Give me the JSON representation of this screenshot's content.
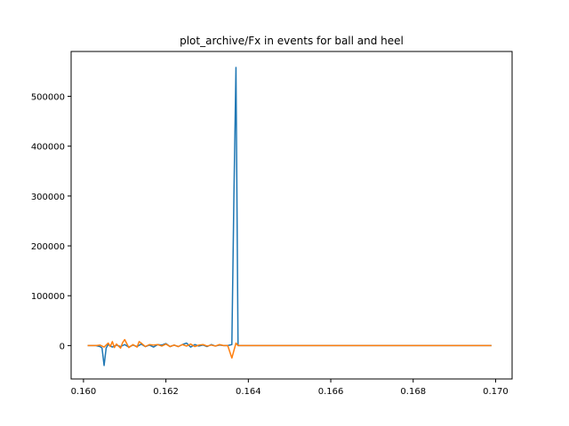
{
  "chart_data": {
    "type": "line",
    "title": "plot_archive/Fx in events for ball and heel",
    "xlabel": "",
    "ylabel": "",
    "xlim": [
      0.1597,
      0.1704
    ],
    "ylim": [
      -67000,
      590000
    ],
    "grid": false,
    "legend": "none",
    "x_ticks": [
      {
        "value": 0.16,
        "label": "0.160"
      },
      {
        "value": 0.162,
        "label": "0.162"
      },
      {
        "value": 0.164,
        "label": "0.164"
      },
      {
        "value": 0.166,
        "label": "0.166"
      },
      {
        "value": 0.168,
        "label": "0.168"
      },
      {
        "value": 0.17,
        "label": "0.170"
      }
    ],
    "y_ticks": [
      {
        "value": 0,
        "label": "0"
      },
      {
        "value": 100000,
        "label": "100000"
      },
      {
        "value": 200000,
        "label": "200000"
      },
      {
        "value": 300000,
        "label": "300000"
      },
      {
        "value": 400000,
        "label": "400000"
      },
      {
        "value": 500000,
        "label": "500000"
      }
    ],
    "series": [
      {
        "color": "#1f77b4",
        "x": [
          0.1601,
          0.1603,
          0.1604,
          0.16045,
          0.1605,
          0.16055,
          0.1606,
          0.1607,
          0.1608,
          0.1609,
          0.161,
          0.1611,
          0.1612,
          0.1613,
          0.1614,
          0.1615,
          0.1616,
          0.1617,
          0.1618,
          0.1619,
          0.162,
          0.1621,
          0.1622,
          0.1623,
          0.1624,
          0.1625,
          0.1626,
          0.1627,
          0.1628,
          0.1629,
          0.163,
          0.1631,
          0.1632,
          0.1633,
          0.1634,
          0.1635,
          0.1636,
          0.16365,
          0.1637,
          0.16375,
          0.1638,
          0.164,
          0.165,
          0.166,
          0.167,
          0.168,
          0.169,
          0.1699
        ],
        "y": [
          0,
          0,
          -2000,
          -5000,
          -40000,
          -5000,
          2000,
          -3000,
          1000,
          -2000,
          2000,
          -3000,
          1000,
          -2000,
          3000,
          -2000,
          1000,
          -3000,
          2000,
          1000,
          4000,
          -2000,
          1000,
          -2000,
          2000,
          5000,
          -3000,
          2000,
          -1000,
          1000,
          -2000,
          2000,
          -1000,
          1000,
          0,
          0,
          2000,
          300000,
          558000,
          0,
          0,
          0,
          0,
          0,
          0,
          0,
          0,
          0
        ]
      },
      {
        "color": "#ff7f0e",
        "x": [
          0.1601,
          0.1603,
          0.1604,
          0.1605,
          0.1606,
          0.16065,
          0.1607,
          0.16075,
          0.1608,
          0.1609,
          0.16095,
          0.161,
          0.1611,
          0.1612,
          0.1613,
          0.16135,
          0.1614,
          0.1615,
          0.1616,
          0.1617,
          0.1618,
          0.1619,
          0.162,
          0.1621,
          0.1622,
          0.1623,
          0.1624,
          0.1625,
          0.1626,
          0.1627,
          0.1628,
          0.1629,
          0.163,
          0.1631,
          0.1632,
          0.1633,
          0.1634,
          0.1635,
          0.1636,
          0.16365,
          0.1637,
          0.16375,
          0.1638,
          0.164,
          0.165,
          0.166,
          0.167,
          0.168,
          0.169,
          0.1699
        ],
        "y": [
          0,
          0,
          1000,
          -3000,
          5000,
          -2000,
          8000,
          -4000,
          3000,
          -5000,
          6000,
          12000,
          -4000,
          2000,
          -3000,
          8000,
          5000,
          -2000,
          2000,
          1000,
          2000,
          -1000,
          3000,
          -2000,
          1000,
          -2000,
          2000,
          -1000,
          3000,
          -2000,
          1000,
          2000,
          -1000,
          1000,
          -1000,
          2000,
          0,
          0,
          -25000,
          -10000,
          5000,
          0,
          0,
          0,
          0,
          0,
          0,
          0,
          0,
          0
        ]
      }
    ]
  }
}
